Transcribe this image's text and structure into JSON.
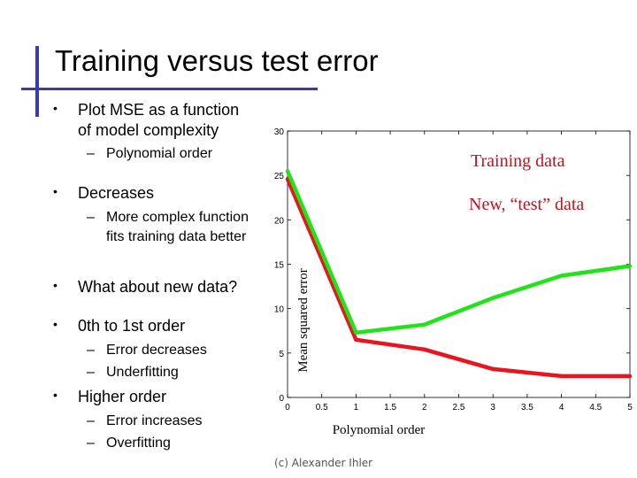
{
  "slide": {
    "title": "Training versus test error",
    "bullets": [
      {
        "level": 1,
        "text": "Plot MSE as a function",
        "marker": "•"
      },
      {
        "level": 1,
        "text": "of model complexity",
        "marker": ""
      },
      {
        "level": 2,
        "text": "Polynomial order",
        "marker": "–"
      },
      {
        "level": 1,
        "text": "Decreases",
        "marker": "•"
      },
      {
        "level": 2,
        "text": "More complex function",
        "marker": "–"
      },
      {
        "level": 2,
        "text": "fits training data better",
        "marker": ""
      },
      {
        "level": 1,
        "text": "What about new data?",
        "marker": "•"
      },
      {
        "level": 1,
        "text": "0th to 1st order",
        "marker": "•"
      },
      {
        "level": 2,
        "text": "Error decreases",
        "marker": "–"
      },
      {
        "level": 2,
        "text": "Underfitting",
        "marker": "–"
      },
      {
        "level": 1,
        "text": "Higher order",
        "marker": "•"
      },
      {
        "level": 2,
        "text": "Error increases",
        "marker": "–"
      },
      {
        "level": 2,
        "text": "Overfitting",
        "marker": "–"
      }
    ],
    "caption": "(c) Alexander Ihler",
    "accent_color": "#3a3aa8"
  },
  "chart_data": {
    "type": "line",
    "xlabel": "Polynomial order",
    "ylabel": "Mean squared error",
    "xlim": [
      0,
      5
    ],
    "ylim": [
      0,
      30
    ],
    "xticks": [
      0,
      0.5,
      1,
      1.5,
      2,
      2.5,
      3,
      3.5,
      4,
      4.5,
      5
    ],
    "xtick_labels": [
      "0",
      "0.5",
      "1",
      "1.5",
      "2",
      "2.5",
      "3",
      "3.5",
      "4",
      "4.5",
      "5"
    ],
    "yticks": [
      0,
      5,
      10,
      15,
      20,
      25,
      30
    ],
    "ytick_labels": [
      "0",
      "5",
      "10",
      "15",
      "20",
      "25",
      "30"
    ],
    "grid": false,
    "series": [
      {
        "name": "Training data",
        "color": "#e8141e",
        "x": [
          0,
          1,
          2,
          3,
          4,
          5
        ],
        "y": [
          24.6,
          6.5,
          5.4,
          3.2,
          2.4,
          2.4
        ]
      },
      {
        "name": "New, “test” data",
        "color": "#22e21a",
        "x": [
          0,
          1,
          2,
          3,
          4,
          5
        ],
        "y": [
          25.5,
          7.3,
          8.2,
          11.2,
          13.7,
          14.8
        ]
      }
    ],
    "legend": {
      "placement": "top-right",
      "color": "#c0141e"
    }
  }
}
